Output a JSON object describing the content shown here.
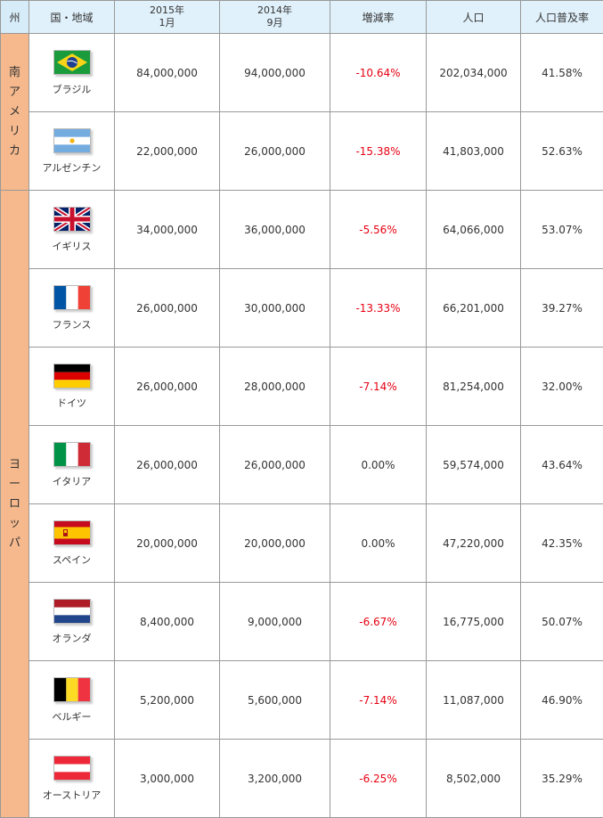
{
  "headers": {
    "region": "州",
    "country": "国・地域",
    "col2015_l1": "2015年",
    "col2015_l2": "1月",
    "col2014_l1": "2014年",
    "col2014_l2": "9月",
    "change": "増減率",
    "population": "人口",
    "penetration": "人口普及率"
  },
  "regions": {
    "south_america": [
      "南",
      "ア",
      "メ",
      "リ",
      "カ"
    ],
    "europe": [
      "ヨ",
      "ー",
      "ロ",
      "ッ",
      "パ"
    ]
  },
  "rows": [
    {
      "country": "ブラジル",
      "flag": "brazil-flag-icon",
      "v2015": "84,000,000",
      "v2014": "94,000,000",
      "change": "-10.64%",
      "population": "202,034,000",
      "rate": "41.58%"
    },
    {
      "country": "アルゼンチン",
      "flag": "argentina-flag-icon",
      "v2015": "22,000,000",
      "v2014": "26,000,000",
      "change": "-15.38%",
      "population": "41,803,000",
      "rate": "52.63%"
    },
    {
      "country": "イギリス",
      "flag": "uk-flag-icon",
      "v2015": "34,000,000",
      "v2014": "36,000,000",
      "change": "-5.56%",
      "population": "64,066,000",
      "rate": "53.07%"
    },
    {
      "country": "フランス",
      "flag": "france-flag-icon",
      "v2015": "26,000,000",
      "v2014": "30,000,000",
      "change": "-13.33%",
      "population": "66,201,000",
      "rate": "39.27%"
    },
    {
      "country": "ドイツ",
      "flag": "germany-flag-icon",
      "v2015": "26,000,000",
      "v2014": "28,000,000",
      "change": "-7.14%",
      "population": "81,254,000",
      "rate": "32.00%"
    },
    {
      "country": "イタリア",
      "flag": "italy-flag-icon",
      "v2015": "26,000,000",
      "v2014": "26,000,000",
      "change": "0.00%",
      "population": "59,574,000",
      "rate": "43.64%"
    },
    {
      "country": "スペイン",
      "flag": "spain-flag-icon",
      "v2015": "20,000,000",
      "v2014": "20,000,000",
      "change": "0.00%",
      "population": "47,220,000",
      "rate": "42.35%"
    },
    {
      "country": "オランダ",
      "flag": "netherlands-flag-icon",
      "v2015": "8,400,000",
      "v2014": "9,000,000",
      "change": "-6.67%",
      "population": "16,775,000",
      "rate": "50.07%"
    },
    {
      "country": "ベルギー",
      "flag": "belgium-flag-icon",
      "v2015": "5,200,000",
      "v2014": "5,600,000",
      "change": "-7.14%",
      "population": "11,087,000",
      "rate": "46.90%"
    },
    {
      "country": "オーストリア",
      "flag": "austria-flag-icon",
      "v2015": "3,000,000",
      "v2014": "3,200,000",
      "change": "-6.25%",
      "population": "8,502,000",
      "rate": "35.29%"
    }
  ],
  "colors": {
    "header_bg": "#e0f1fb",
    "region_bg": "#f5b98d",
    "negative": "#e60012",
    "border": "#999999"
  }
}
